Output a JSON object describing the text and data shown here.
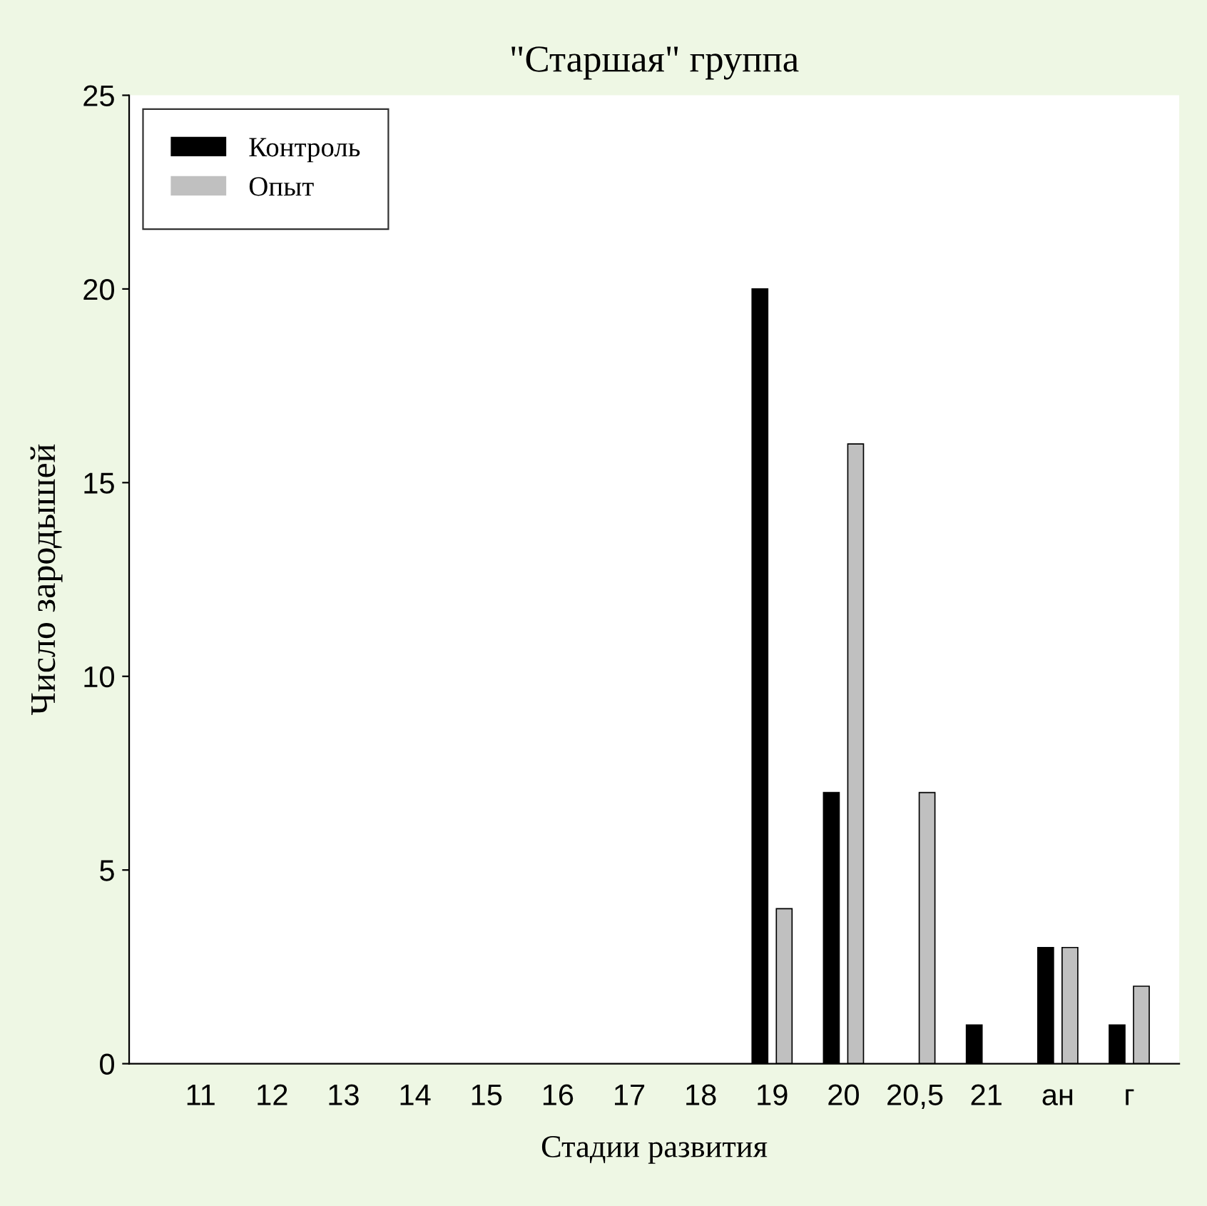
{
  "chart_data": {
    "type": "bar",
    "title": "\"Старшая\" группа",
    "xlabel": "Стадии развития",
    "ylabel": "Число зародышей",
    "categories": [
      "11",
      "12",
      "13",
      "14",
      "15",
      "16",
      "17",
      "18",
      "19",
      "20",
      "20,5",
      "21",
      "ан",
      "г"
    ],
    "series": [
      {
        "name": "Контроль",
        "color": "#000000",
        "values": [
          0,
          0,
          0,
          0,
          0,
          0,
          0,
          0,
          20,
          7,
          0,
          1,
          3,
          1
        ]
      },
      {
        "name": "Опыт",
        "color": "#c0c0c0",
        "values": [
          0,
          0,
          0,
          0,
          0,
          0,
          0,
          0,
          4,
          16,
          7,
          0,
          3,
          2
        ]
      }
    ],
    "ylim": [
      0,
      25
    ],
    "yticks": [
      0,
      5,
      10,
      15,
      20,
      25
    ],
    "grid": false,
    "legend": "top left"
  }
}
